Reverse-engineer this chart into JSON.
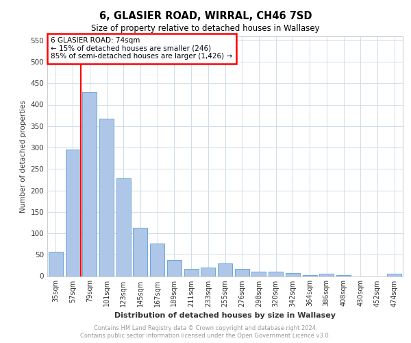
{
  "title_line1": "6, GLASIER ROAD, WIRRAL, CH46 7SD",
  "title_line2": "Size of property relative to detached houses in Wallasey",
  "xlabel": "Distribution of detached houses by size in Wallasey",
  "ylabel": "Number of detached properties",
  "categories": [
    "35sqm",
    "57sqm",
    "79sqm",
    "101sqm",
    "123sqm",
    "145sqm",
    "167sqm",
    "189sqm",
    "211sqm",
    "233sqm",
    "255sqm",
    "276sqm",
    "298sqm",
    "320sqm",
    "342sqm",
    "364sqm",
    "386sqm",
    "408sqm",
    "430sqm",
    "452sqm",
    "474sqm"
  ],
  "values": [
    57,
    295,
    430,
    367,
    228,
    113,
    76,
    38,
    17,
    20,
    30,
    17,
    10,
    10,
    8,
    3,
    5,
    2,
    0,
    0,
    5
  ],
  "bar_color": "#aec6e8",
  "bar_edge_color": "#5a9fd4",
  "red_line_x": 1.5,
  "annotation_title": "6 GLASIER ROAD: 74sqm",
  "annotation_line1": "← 15% of detached houses are smaller (246)",
  "annotation_line2": "85% of semi-detached houses are larger (1,426) →",
  "ylim": [
    0,
    560
  ],
  "yticks": [
    0,
    50,
    100,
    150,
    200,
    250,
    300,
    350,
    400,
    450,
    500,
    550
  ],
  "footnote_line1": "Contains HM Land Registry data © Crown copyright and database right 2024.",
  "footnote_line2": "Contains public sector information licensed under the Open Government Licence v3.0.",
  "background_color": "#ffffff",
  "grid_color": "#d0dce8"
}
